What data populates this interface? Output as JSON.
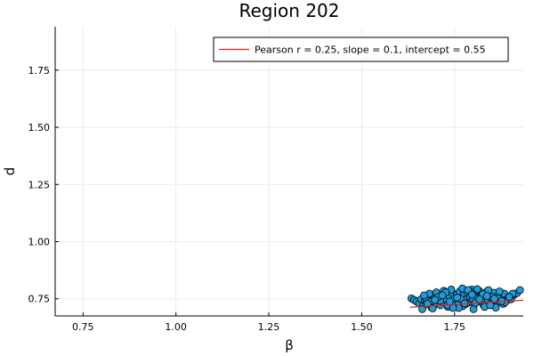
{
  "chart_data": {
    "type": "scatter",
    "title": "Region 202",
    "xlabel": "β",
    "ylabel": "d",
    "xlim": [
      0.675,
      1.935
    ],
    "ylim": [
      0.675,
      1.94
    ],
    "xticks": [
      0.75,
      1.0,
      1.25,
      1.5,
      1.75
    ],
    "xtick_labels": [
      "0.75",
      "1.00",
      "1.25",
      "1.50",
      "1.75"
    ],
    "yticks": [
      0.75,
      1.0,
      1.25,
      1.5,
      1.75
    ],
    "ytick_labels": [
      "0.75",
      "1.00",
      "1.25",
      "1.50",
      "1.75"
    ],
    "grid": true,
    "legend_position": "top-right",
    "legend_entries": [
      "Pearson r = 0.25, slope = 0.1, intercept = 0.55"
    ],
    "colors": {
      "points": "#1f9bd9",
      "fit_line": "#e3261f"
    },
    "series": [
      {
        "type": "line",
        "x": [
          1.63,
          1.935
        ],
        "y": [
          0.713,
          0.7435
        ]
      },
      {
        "type": "scatter",
        "x": [
          1.634,
          1.641,
          1.648,
          1.655,
          1.66,
          1.665,
          1.67,
          1.675,
          1.68,
          1.684,
          1.688,
          1.692,
          1.696,
          1.7,
          1.704,
          1.708,
          1.712,
          1.716,
          1.72,
          1.724,
          1.728,
          1.732,
          1.736,
          1.74,
          1.744,
          1.748,
          1.752,
          1.756,
          1.76,
          1.764,
          1.768,
          1.772,
          1.776,
          1.78,
          1.784,
          1.788,
          1.792,
          1.796,
          1.8,
          1.804,
          1.808,
          1.812,
          1.816,
          1.82,
          1.824,
          1.828,
          1.832,
          1.836,
          1.84,
          1.844,
          1.848,
          1.852,
          1.856,
          1.86,
          1.866,
          1.872,
          1.878,
          1.884,
          1.89,
          1.896,
          1.902,
          1.91,
          1.918,
          1.926,
          1.663,
          1.672,
          1.682,
          1.691,
          1.701,
          1.711,
          1.721,
          1.731,
          1.741,
          1.751,
          1.761,
          1.771,
          1.781,
          1.791,
          1.801,
          1.811,
          1.821,
          1.831,
          1.841,
          1.851,
          1.861,
          1.871,
          1.881,
          1.668,
          1.686,
          1.706,
          1.726,
          1.746,
          1.766,
          1.786,
          1.806,
          1.826,
          1.846,
          1.866,
          1.886,
          1.906,
          1.677,
          1.697,
          1.717,
          1.737,
          1.757,
          1.777,
          1.797,
          1.817,
          1.837,
          1.857,
          1.877,
          1.897
        ],
        "y": [
          0.752,
          0.745,
          0.738,
          0.73,
          0.748,
          0.718,
          0.742,
          0.735,
          0.76,
          0.725,
          0.712,
          0.752,
          0.74,
          0.728,
          0.765,
          0.745,
          0.722,
          0.758,
          0.735,
          0.77,
          0.748,
          0.715,
          0.762,
          0.732,
          0.775,
          0.742,
          0.725,
          0.768,
          0.738,
          0.782,
          0.755,
          0.718,
          0.772,
          0.745,
          0.778,
          0.735,
          0.76,
          0.79,
          0.748,
          0.728,
          0.772,
          0.752,
          0.785,
          0.738,
          0.765,
          0.722,
          0.758,
          0.78,
          0.742,
          0.77,
          0.732,
          0.755,
          0.776,
          0.745,
          0.762,
          0.738,
          0.75,
          0.772,
          0.742,
          0.758,
          0.748,
          0.768,
          0.775,
          0.788,
          0.705,
          0.755,
          0.772,
          0.708,
          0.778,
          0.742,
          0.785,
          0.722,
          0.79,
          0.752,
          0.71,
          0.795,
          0.728,
          0.782,
          0.705,
          0.792,
          0.742,
          0.715,
          0.788,
          0.758,
          0.712,
          0.782,
          0.728,
          0.765,
          0.738,
          0.758,
          0.778,
          0.71,
          0.75,
          0.788,
          0.732,
          0.77,
          0.722,
          0.752,
          0.735,
          0.772,
          0.728,
          0.745,
          0.765,
          0.738,
          0.755,
          0.73,
          0.768,
          0.748,
          0.762,
          0.75,
          0.74,
          0.758
        ]
      }
    ]
  }
}
